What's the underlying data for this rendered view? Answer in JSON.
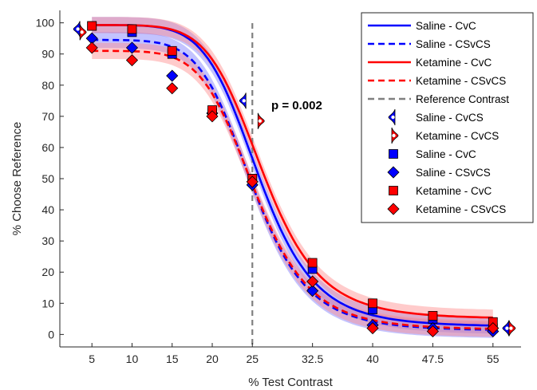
{
  "chart_data": {
    "type": "scatter",
    "xlabel": "% Test Contrast",
    "ylabel": "% Choose Reference",
    "xlim": [
      1,
      58.5
    ],
    "ylim": [
      -4,
      104
    ],
    "x_tick_values": [
      5,
      10,
      15,
      20,
      25,
      32.5,
      40,
      47.5,
      55
    ],
    "x_tick_labels": [
      "5",
      "10",
      "15",
      "20",
      "25",
      "32.5",
      "40",
      "47.5",
      "55"
    ],
    "y_tick_values": [
      0,
      10,
      20,
      30,
      40,
      50,
      60,
      70,
      80,
      90,
      100
    ],
    "y_tick_labels": [
      "0",
      "10",
      "20",
      "30",
      "40",
      "50",
      "60",
      "70",
      "80",
      "90",
      "100"
    ],
    "reference_contrast": 25,
    "annotation": "p = 0.002",
    "legend_position": "top-right",
    "colors": {
      "saline": "#0000ff",
      "ketamine": "#ff0000",
      "saline_band": "#7b7bff",
      "ketamine_band": "#ff8c8c",
      "reference": "#808080"
    },
    "legend": [
      "Saline - CvC",
      "Saline - CSvCS",
      "Ketamine - CvC",
      "Ketamine - CSvCS",
      "Reference Contrast",
      "Saline - CvCS",
      "Ketamine - CvCS",
      "Saline - CvC",
      "Saline - CSvCS",
      "Ketamine - CvC",
      "Ketamine - CSvCS"
    ],
    "fits": [
      {
        "name": "Saline - CvC",
        "color": "#0000ff",
        "dash": false,
        "top": 99.3,
        "bottom": 2.5,
        "mid": 25.8,
        "slope": 3.35
      },
      {
        "name": "Saline - CSvCS",
        "color": "#0000ff",
        "dash": true,
        "top": 94.5,
        "bottom": 1.2,
        "mid": 25.0,
        "slope": 3.3
      },
      {
        "name": "Ketamine - CvC",
        "color": "#ff0000",
        "dash": false,
        "top": 99.3,
        "bottom": 5.0,
        "mid": 26.3,
        "slope": 3.35
      },
      {
        "name": "Ketamine - CSvCS",
        "color": "#ff0000",
        "dash": true,
        "top": 91.0,
        "bottom": 1.5,
        "mid": 25.3,
        "slope": 3.3
      }
    ],
    "series": [
      {
        "name": "Saline - CvC",
        "marker": "square",
        "color": "#0000ff",
        "x": [
          5,
          10,
          15,
          20,
          25,
          32.5,
          40,
          47.5,
          55
        ],
        "y": [
          99,
          97,
          90,
          71,
          50,
          21,
          8,
          5,
          2
        ]
      },
      {
        "name": "Saline - CSvCS",
        "marker": "diamond",
        "color": "#0000ff",
        "x": [
          5,
          10,
          15,
          20,
          25,
          32.5,
          40,
          47.5,
          55
        ],
        "y": [
          95,
          92,
          83,
          71,
          48,
          14,
          3,
          2,
          1
        ]
      },
      {
        "name": "Ketamine - CvC",
        "marker": "square",
        "color": "#ff0000",
        "x": [
          5,
          10,
          15,
          20,
          25,
          32.5,
          40,
          47.5,
          55
        ],
        "y": [
          99,
          98,
          91,
          72,
          50,
          23,
          10,
          6,
          4
        ]
      },
      {
        "name": "Ketamine - CSvCS",
        "marker": "diamond",
        "color": "#ff0000",
        "x": [
          5,
          10,
          15,
          20,
          25,
          32.5,
          40,
          47.5,
          55
        ],
        "y": [
          92,
          88,
          79,
          70,
          49,
          17,
          2,
          1,
          2
        ]
      },
      {
        "name": "Saline - CvCS",
        "marker": "half-violin-left",
        "color": "#0000ff",
        "x": [
          3.5,
          57
        ],
        "y": [
          98,
          2
        ]
      },
      {
        "name": "Ketamine - CvCS",
        "marker": "half-violin-right",
        "color": "#ff0000",
        "x": [
          3.5,
          57
        ],
        "y": [
          97,
          2
        ]
      },
      {
        "name": "Saline - CvCS",
        "marker": "half-violin-left",
        "color": "#0000ff",
        "x": [
          24.2
        ],
        "y": [
          75
        ]
      },
      {
        "name": "Ketamine - CvCS",
        "marker": "half-violin-right",
        "color": "#ff0000",
        "x": [
          25.7
        ],
        "y": [
          68.5
        ]
      }
    ]
  }
}
